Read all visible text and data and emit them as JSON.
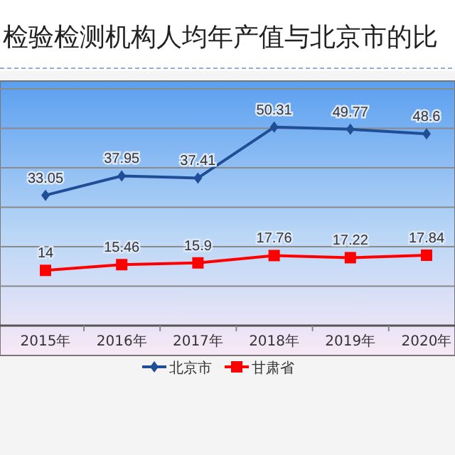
{
  "chart_data": {
    "type": "line",
    "title": "检验检测机构人均年产值与北京市的比",
    "categories": [
      "2015年",
      "2016年",
      "2017年",
      "2018年",
      "2019年",
      "2020年"
    ],
    "series": [
      {
        "name": "北京市",
        "color": "#1f4e96",
        "marker": "diamond",
        "values": [
          33.05,
          37.95,
          37.41,
          50.31,
          49.77,
          48.6
        ]
      },
      {
        "name": "甘肃省",
        "color": "#ff0000",
        "marker": "square",
        "values": [
          14,
          15.46,
          15.9,
          17.76,
          17.22,
          17.84
        ]
      }
    ],
    "ylim": [
      0,
      62
    ],
    "yticks": [
      {
        "value": 10,
        "label": null
      },
      {
        "value": 20,
        "label": null
      },
      {
        "value": 30,
        "label": null
      },
      {
        "value": 40,
        "label": null
      },
      {
        "value": 50,
        "label": null
      },
      {
        "value": 60,
        "label": null
      }
    ],
    "tick_labels": "x",
    "grid": "y",
    "data_labels": true,
    "legend": "bottom"
  }
}
